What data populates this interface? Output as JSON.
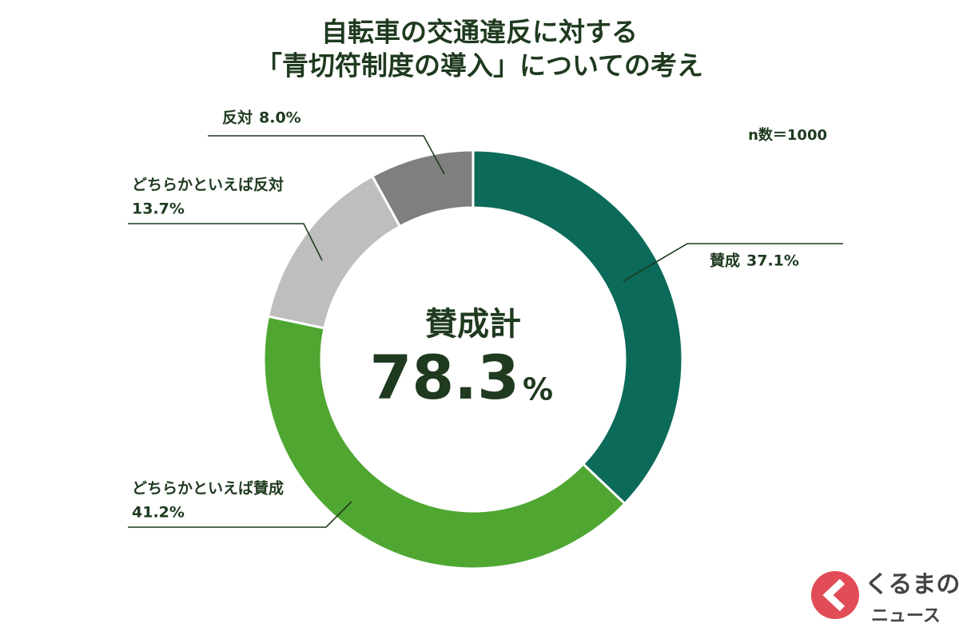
{
  "chart_data": {
    "type": "donut",
    "title": [
      "自転車の交通違反に対する",
      "「青切符制度の導入」についての考え"
    ],
    "sample_size": "n数＝1000",
    "categories": [
      "賛成",
      "どちらかといえば賛成",
      "どちらかといえば反対",
      "反対"
    ],
    "values": [
      37.1,
      41.2,
      13.7,
      8.0
    ],
    "value_labels": [
      "37.1%",
      "41.2%",
      "13.7%",
      "8.0%"
    ],
    "colors": [
      "#0b6a59",
      "#4fa732",
      "#bebebe",
      "#7f7f7f"
    ],
    "center_label": "賛成計",
    "center_value": 78.3,
    "center_unit": "%"
  },
  "watermark": {
    "line1": "くるまの",
    "line2": "ニュース"
  }
}
